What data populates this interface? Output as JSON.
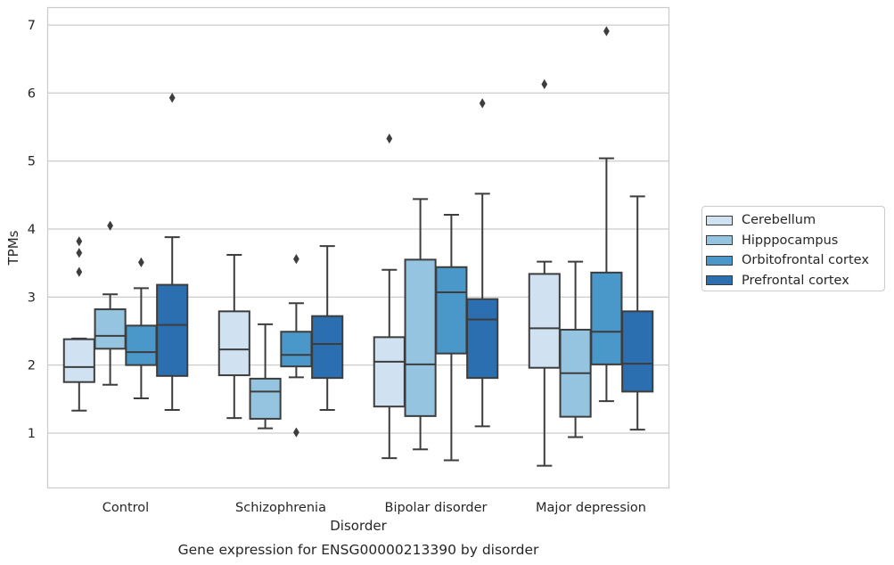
{
  "chart_data": {
    "type": "boxplot",
    "title": "Gene expression for ENSG00000213390 by disorder",
    "xlabel": "Disorder",
    "ylabel": "TPMs",
    "ylim": [
      0.2,
      7.25
    ],
    "yticks": [
      1,
      2,
      3,
      4,
      5,
      6,
      7
    ],
    "grid": "horizontal",
    "legend_position": "right",
    "categories": [
      "Control",
      "Schizophrenia",
      "Bipolar disorder",
      "Major depression"
    ],
    "series": [
      {
        "name": "Cerebellum",
        "color": "#d0e1f2",
        "boxes": [
          {
            "whislo": 1.33,
            "q1": 1.75,
            "med": 1.97,
            "q3": 2.38,
            "whishi": 2.39,
            "fliers": [
              3.37,
              3.65,
              3.82
            ]
          },
          {
            "whislo": 1.22,
            "q1": 1.85,
            "med": 2.23,
            "q3": 2.79,
            "whishi": 3.62,
            "fliers": []
          },
          {
            "whislo": 0.63,
            "q1": 1.39,
            "med": 2.05,
            "q3": 2.41,
            "whishi": 3.4,
            "fliers": [
              5.33
            ]
          },
          {
            "whislo": 0.52,
            "q1": 1.96,
            "med": 2.54,
            "q3": 3.34,
            "whishi": 3.52,
            "fliers": [
              6.13
            ]
          }
        ]
      },
      {
        "name": "Hipppocampus",
        "color": "#94c4df",
        "boxes": [
          {
            "whislo": 1.71,
            "q1": 2.24,
            "med": 2.43,
            "q3": 2.82,
            "whishi": 3.04,
            "fliers": [
              4.05
            ]
          },
          {
            "whislo": 1.07,
            "q1": 1.21,
            "med": 1.61,
            "q3": 1.8,
            "whishi": 2.6,
            "fliers": []
          },
          {
            "whislo": 0.76,
            "q1": 1.25,
            "med": 2.01,
            "q3": 3.55,
            "whishi": 4.44,
            "fliers": []
          },
          {
            "whislo": 0.94,
            "q1": 1.24,
            "med": 1.88,
            "q3": 2.52,
            "whishi": 3.52,
            "fliers": []
          }
        ]
      },
      {
        "name": "Orbitofrontal cortex",
        "color": "#4a98c9",
        "boxes": [
          {
            "whislo": 1.51,
            "q1": 2.0,
            "med": 2.19,
            "q3": 2.58,
            "whishi": 3.13,
            "fliers": [
              3.51
            ]
          },
          {
            "whislo": 1.82,
            "q1": 1.98,
            "med": 2.15,
            "q3": 2.49,
            "whishi": 2.91,
            "fliers": [
              1.01,
              3.56
            ]
          },
          {
            "whislo": 0.6,
            "q1": 2.17,
            "med": 3.07,
            "q3": 3.44,
            "whishi": 4.21,
            "fliers": []
          },
          {
            "whislo": 1.47,
            "q1": 2.01,
            "med": 2.49,
            "q3": 3.36,
            "whishi": 5.04,
            "fliers": [
              6.91
            ]
          }
        ]
      },
      {
        "name": "Prefrontal cortex",
        "color": "#2c6fb0",
        "boxes": [
          {
            "whislo": 1.34,
            "q1": 1.84,
            "med": 2.59,
            "q3": 3.18,
            "whishi": 3.88,
            "fliers": [
              5.93
            ]
          },
          {
            "whislo": 1.34,
            "q1": 1.81,
            "med": 2.31,
            "q3": 2.72,
            "whishi": 3.75,
            "fliers": []
          },
          {
            "whislo": 1.1,
            "q1": 1.81,
            "med": 2.67,
            "q3": 2.97,
            "whishi": 4.52,
            "fliers": [
              5.85
            ]
          },
          {
            "whislo": 1.05,
            "q1": 1.61,
            "med": 2.02,
            "q3": 2.79,
            "whishi": 4.48,
            "fliers": []
          }
        ]
      }
    ]
  }
}
